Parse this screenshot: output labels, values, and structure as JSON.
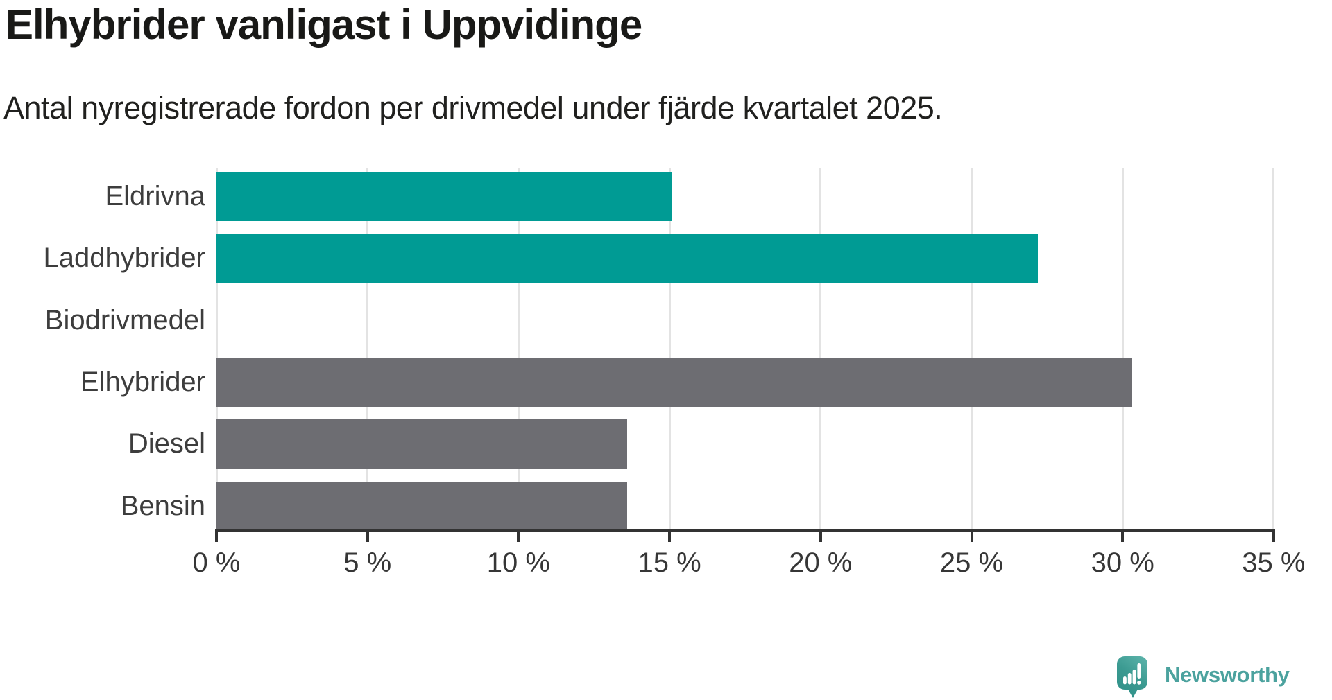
{
  "header": {
    "title": "Elhybrider vanligast i Uppvidinge",
    "subtitle": "Antal nyregistrerade fordon per drivmedel under fjärde kvartalet 2025."
  },
  "chart_data": {
    "type": "bar",
    "orientation": "horizontal",
    "title": "Elhybrider vanligast i Uppvidinge",
    "subtitle": "Antal nyregistrerade fordon per drivmedel under fjärde kvartalet 2025.",
    "categories": [
      "Eldrivna",
      "Laddhybrider",
      "Biodrivmedel",
      "Elhybrider",
      "Diesel",
      "Bensin"
    ],
    "values": [
      15.1,
      27.2,
      0,
      30.3,
      13.6,
      13.6
    ],
    "unit": "%",
    "bar_colors": [
      "#009b94",
      "#009b94",
      "#009b94",
      "#6d6d72",
      "#6d6d72",
      "#6d6d72"
    ],
    "xlim": [
      0,
      35
    ],
    "x_ticks": [
      0,
      5,
      10,
      15,
      20,
      25,
      30,
      35
    ],
    "x_tick_labels": [
      "0 %",
      "5 %",
      "10 %",
      "15 %",
      "20 %",
      "25 %",
      "30 %",
      "35 %"
    ],
    "grid": "vertical",
    "legend": "none",
    "xlabel": "",
    "ylabel": ""
  },
  "branding": {
    "logo_text": "Newsworthy"
  },
  "colors": {
    "accent_teal": "#009b94",
    "bar_gray": "#6d6d72",
    "gridline": "#e3e3e3",
    "axis": "#333333",
    "title_text": "#191917",
    "label_text": "#3d3d3d",
    "logo_teal": "#4ba29e"
  }
}
